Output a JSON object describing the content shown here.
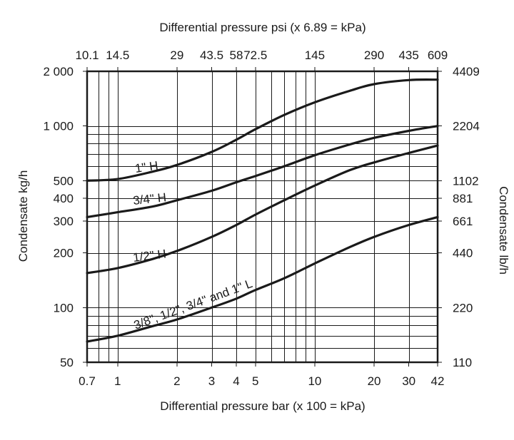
{
  "chart_data": {
    "type": "line",
    "scale": "log-log",
    "grid": true,
    "title": "",
    "top_axis": {
      "title": "Differential pressure psi (x 6.89 = kPa)",
      "ticks": [
        {
          "label": "10.1",
          "bar": 0.7
        },
        {
          "label": "14.5",
          "bar": 1
        },
        {
          "label": "29",
          "bar": 2
        },
        {
          "label": "43.5",
          "bar": 3
        },
        {
          "label": "58",
          "bar": 4
        },
        {
          "label": "72.5",
          "bar": 5
        },
        {
          "label": "145",
          "bar": 10
        },
        {
          "label": "290",
          "bar": 20
        },
        {
          "label": "435",
          "bar": 30
        },
        {
          "label": "609",
          "bar": 42
        }
      ]
    },
    "bottom_axis": {
      "title": "Differential pressure bar (x 100 = kPa)",
      "ticks": [
        {
          "label": "0.7",
          "bar": 0.7
        },
        {
          "label": "1",
          "bar": 1
        },
        {
          "label": "2",
          "bar": 2
        },
        {
          "label": "3",
          "bar": 3
        },
        {
          "label": "4",
          "bar": 4
        },
        {
          "label": "5",
          "bar": 5
        },
        {
          "label": "10",
          "bar": 10
        },
        {
          "label": "20",
          "bar": 20
        },
        {
          "label": "30",
          "bar": 30
        },
        {
          "label": "42",
          "bar": 42
        }
      ]
    },
    "left_axis": {
      "title": "Condensate kg/h",
      "ticks": [
        {
          "label": "2 000",
          "kgh": 2000
        },
        {
          "label": "1 000",
          "kgh": 1000
        },
        {
          "label": "500",
          "kgh": 500
        },
        {
          "label": "400",
          "kgh": 400
        },
        {
          "label": "300",
          "kgh": 300
        },
        {
          "label": "200",
          "kgh": 200
        },
        {
          "label": "100",
          "kgh": 100
        },
        {
          "label": "50",
          "kgh": 50
        }
      ]
    },
    "right_axis": {
      "title": "Condensate lb/h",
      "ticks": [
        {
          "label": "4409",
          "kgh": 2000
        },
        {
          "label": "2204",
          "kgh": 1000
        },
        {
          "label": "1102",
          "kgh": 500
        },
        {
          "label": "881",
          "kgh": 400
        },
        {
          "label": "661",
          "kgh": 300
        },
        {
          "label": "440",
          "kgh": 200
        },
        {
          "label": "220",
          "kgh": 100
        },
        {
          "label": "110",
          "kgh": 50
        }
      ]
    },
    "xlim": [
      0.7,
      42
    ],
    "ylim": [
      50,
      2000
    ],
    "x_grid": [
      0.7,
      0.8,
      0.9,
      1,
      2,
      3,
      4,
      5,
      6,
      7,
      8,
      9,
      10,
      20,
      30,
      42
    ],
    "y_grid": [
      50,
      60,
      70,
      80,
      90,
      100,
      200,
      300,
      400,
      500,
      600,
      700,
      800,
      900,
      1000,
      2000
    ],
    "series": [
      {
        "name": "1\" H",
        "x": [
          0.7,
          1,
          1.5,
          2,
          3,
          4,
          5,
          7,
          10,
          15,
          20,
          30,
          42
        ],
        "y": [
          500,
          510,
          560,
          610,
          720,
          840,
          960,
          1150,
          1350,
          1560,
          1700,
          1790,
          1800
        ]
      },
      {
        "name": "3/4\" H",
        "x": [
          0.7,
          1,
          1.5,
          2,
          3,
          4,
          5,
          7,
          10,
          15,
          20,
          30,
          42
        ],
        "y": [
          315,
          335,
          360,
          390,
          440,
          490,
          530,
          600,
          690,
          790,
          860,
          940,
          1000
        ]
      },
      {
        "name": "1/2\" H",
        "x": [
          0.7,
          1,
          1.5,
          2,
          3,
          4,
          5,
          7,
          10,
          15,
          20,
          30,
          42
        ],
        "y": [
          155,
          165,
          185,
          205,
          245,
          285,
          325,
          390,
          470,
          570,
          630,
          710,
          780
        ]
      },
      {
        "name": "3/8\", 1/2\", 3/4\" and 1\" L",
        "x": [
          0.7,
          1,
          1.5,
          2,
          3,
          4,
          5,
          7,
          10,
          15,
          20,
          30,
          42
        ],
        "y": [
          65,
          70,
          79,
          86,
          100,
          112,
          125,
          145,
          175,
          215,
          245,
          285,
          315
        ]
      }
    ],
    "curve_labels": [
      {
        "text": "1\" H",
        "series": 0
      },
      {
        "text": "3/4\" H",
        "series": 1
      },
      {
        "text": "1/2\" H",
        "series": 2
      },
      {
        "text": "3/8\", 1/2\", 3/4\" and 1\" L",
        "series": 3
      }
    ]
  }
}
